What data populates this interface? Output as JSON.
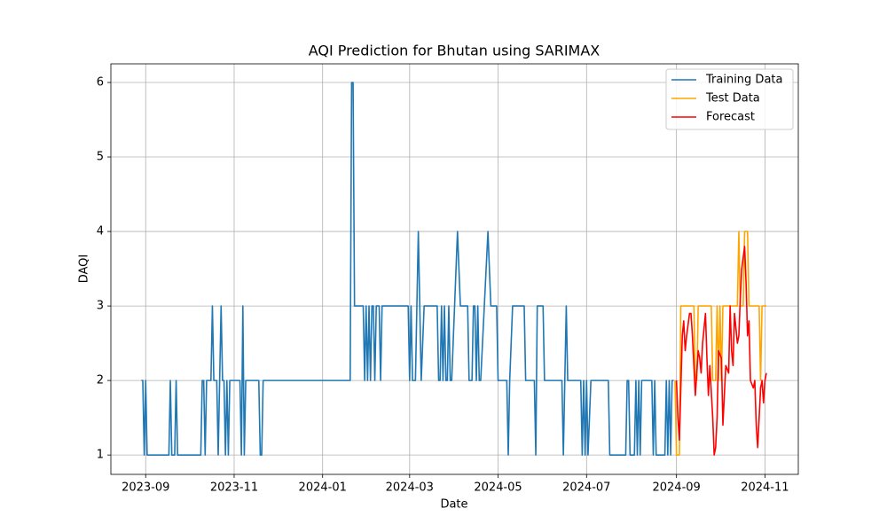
{
  "chart_data": {
    "type": "line",
    "title": "AQI Prediction for Bhutan using SARIMAX",
    "x_label": "Date",
    "y_label": "DAQI",
    "grid": true,
    "legend": "upper right",
    "xlim": [
      "2023-08-08",
      "2024-11-24"
    ],
    "xticks": [
      "2023-09",
      "2023-11",
      "2024-01",
      "2024-03",
      "2024-05",
      "2024-07",
      "2024-09",
      "2024-11"
    ],
    "ylim": [
      0.74,
      6.25
    ],
    "yticks": [
      1,
      2,
      3,
      4,
      5,
      6
    ],
    "series": [
      {
        "name": "Training Data",
        "color": "#1f77b4",
        "x": [
          "2023-08-29",
          "2023-08-30",
          "2023-08-31",
          "2023-09-01",
          "2023-09-02",
          "2023-09-17",
          "2023-09-18",
          "2023-09-19",
          "2023-09-21",
          "2023-09-22",
          "2023-09-23",
          "2023-10-09",
          "2023-10-10",
          "2023-10-11",
          "2023-10-12",
          "2023-10-13",
          "2023-10-16",
          "2023-10-17",
          "2023-10-18",
          "2023-10-20",
          "2023-10-21",
          "2023-10-22",
          "2023-10-23",
          "2023-10-24",
          "2023-10-25",
          "2023-10-26",
          "2023-10-27",
          "2023-10-28",
          "2023-10-29",
          "2023-11-05",
          "2023-11-06",
          "2023-11-07",
          "2023-11-08",
          "2023-11-09",
          "2023-11-18",
          "2023-11-19",
          "2023-11-20",
          "2023-11-21",
          "2024-01-20",
          "2024-01-21",
          "2024-01-22",
          "2024-01-23",
          "2024-01-29",
          "2024-01-30",
          "2024-01-31",
          "2024-02-01",
          "2024-02-02",
          "2024-02-03",
          "2024-02-04",
          "2024-02-05",
          "2024-02-06",
          "2024-02-07",
          "2024-02-09",
          "2024-02-10",
          "2024-02-11",
          "2024-02-29",
          "2024-03-01",
          "2024-03-02",
          "2024-03-03",
          "2024-03-05",
          "2024-03-07",
          "2024-03-09",
          "2024-03-11",
          "2024-03-20",
          "2024-03-21",
          "2024-03-22",
          "2024-03-23",
          "2024-03-24",
          "2024-03-25",
          "2024-03-26",
          "2024-03-27",
          "2024-03-28",
          "2024-03-29",
          "2024-03-30",
          "2024-04-03",
          "2024-04-05",
          "2024-04-10",
          "2024-04-11",
          "2024-04-13",
          "2024-04-14",
          "2024-04-15",
          "2024-04-16",
          "2024-04-17",
          "2024-04-18",
          "2024-04-19",
          "2024-04-24",
          "2024-04-26",
          "2024-04-30",
          "2024-05-01",
          "2024-05-07",
          "2024-05-08",
          "2024-05-09",
          "2024-05-11",
          "2024-05-19",
          "2024-05-20",
          "2024-05-26",
          "2024-05-27",
          "2024-05-28",
          "2024-06-01",
          "2024-06-02",
          "2024-06-14",
          "2024-06-15",
          "2024-06-16",
          "2024-06-17",
          "2024-06-18",
          "2024-06-27",
          "2024-06-28",
          "2024-06-29",
          "2024-06-30",
          "2024-07-01",
          "2024-07-02",
          "2024-07-04",
          "2024-07-16",
          "2024-07-17",
          "2024-07-28",
          "2024-07-29",
          "2024-07-30",
          "2024-07-31",
          "2024-08-03",
          "2024-08-04",
          "2024-08-05",
          "2024-08-06",
          "2024-08-07",
          "2024-08-08",
          "2024-08-15",
          "2024-08-16",
          "2024-08-17",
          "2024-08-18",
          "2024-08-24",
          "2024-08-25",
          "2024-08-26",
          "2024-08-27",
          "2024-08-28",
          "2024-08-29",
          "2024-08-30"
        ],
        "values": [
          2,
          2,
          1,
          2,
          1,
          1,
          2,
          1,
          1,
          2,
          1,
          1,
          2,
          2,
          1,
          2,
          2,
          3,
          2,
          2,
          1,
          2,
          3,
          2,
          2,
          1,
          2,
          1,
          2,
          2,
          1,
          3,
          1,
          2,
          2,
          1,
          1,
          2,
          2,
          6,
          6,
          3,
          3,
          2,
          3,
          2,
          3,
          2,
          3,
          3,
          2,
          3,
          3,
          2,
          3,
          3,
          2,
          3,
          2,
          2,
          4,
          2,
          3,
          3,
          2,
          2,
          3,
          2,
          3,
          2,
          2,
          3,
          2,
          2,
          4,
          3,
          3,
          2,
          2,
          3,
          3,
          2,
          3,
          2,
          2,
          4,
          3,
          3,
          2,
          2,
          1,
          2,
          3,
          3,
          2,
          2,
          1,
          3,
          3,
          2,
          2,
          1,
          2,
          3,
          2,
          2,
          1,
          2,
          1,
          2,
          1,
          2,
          2,
          1,
          1,
          2,
          2,
          1,
          1,
          2,
          1,
          2,
          1,
          2,
          2,
          1,
          2,
          1,
          1,
          2,
          1,
          2,
          1,
          2,
          2
        ]
      },
      {
        "name": "Test Data",
        "color": "#ffa500",
        "x": [
          "2024-08-31",
          "2024-09-01",
          "2024-09-03",
          "2024-09-04",
          "2024-09-13",
          "2024-09-14",
          "2024-09-15",
          "2024-09-16",
          "2024-09-25",
          "2024-09-26",
          "2024-09-28",
          "2024-09-29",
          "2024-09-30",
          "2024-10-01",
          "2024-10-02",
          "2024-10-03",
          "2024-10-13",
          "2024-10-14",
          "2024-10-15",
          "2024-10-17",
          "2024-10-18",
          "2024-10-20",
          "2024-10-21",
          "2024-10-28",
          "2024-10-29",
          "2024-10-30",
          "2024-11-02"
        ],
        "values": [
          2,
          1,
          1,
          3,
          3,
          2,
          2,
          3,
          3,
          2,
          2,
          3,
          2,
          3,
          2,
          3,
          3,
          4,
          3,
          3,
          4,
          4,
          3,
          3,
          2,
          3,
          3
        ]
      },
      {
        "name": "Forecast",
        "color": "#ff0000",
        "x": [
          "2024-09-01",
          "2024-09-02",
          "2024-09-03",
          "2024-09-05",
          "2024-09-06",
          "2024-09-07",
          "2024-09-08",
          "2024-09-10",
          "2024-09-11",
          "2024-09-12",
          "2024-09-13",
          "2024-09-14",
          "2024-09-16",
          "2024-09-17",
          "2024-09-18",
          "2024-09-19",
          "2024-09-21",
          "2024-09-22",
          "2024-09-23",
          "2024-09-24",
          "2024-09-26",
          "2024-09-27",
          "2024-09-28",
          "2024-09-29",
          "2024-09-30",
          "2024-10-02",
          "2024-10-03",
          "2024-10-04",
          "2024-10-05",
          "2024-10-07",
          "2024-10-08",
          "2024-10-09",
          "2024-10-10",
          "2024-10-11",
          "2024-10-13",
          "2024-10-14",
          "2024-10-15",
          "2024-10-16",
          "2024-10-18",
          "2024-10-19",
          "2024-10-20",
          "2024-10-21",
          "2024-10-22",
          "2024-10-24",
          "2024-10-25",
          "2024-10-26",
          "2024-10-27",
          "2024-10-29",
          "2024-10-30",
          "2024-10-31",
          "2024-11-01",
          "2024-11-02"
        ],
        "values": [
          2.0,
          1.5,
          1.2,
          2.6,
          2.8,
          2.4,
          2.6,
          2.9,
          2.9,
          2.6,
          2.2,
          1.8,
          2.4,
          2.3,
          2.1,
          2.5,
          2.9,
          2.3,
          1.8,
          2.2,
          1.5,
          1.0,
          1.1,
          1.5,
          2.4,
          2.3,
          1.4,
          1.8,
          2.2,
          2.1,
          3.0,
          2.4,
          2.2,
          2.9,
          2.5,
          2.6,
          3.1,
          3.5,
          3.8,
          3.3,
          2.6,
          2.8,
          2.0,
          1.9,
          2.0,
          1.4,
          1.1,
          1.9,
          2.0,
          1.7,
          2.0,
          2.1
        ]
      }
    ]
  }
}
